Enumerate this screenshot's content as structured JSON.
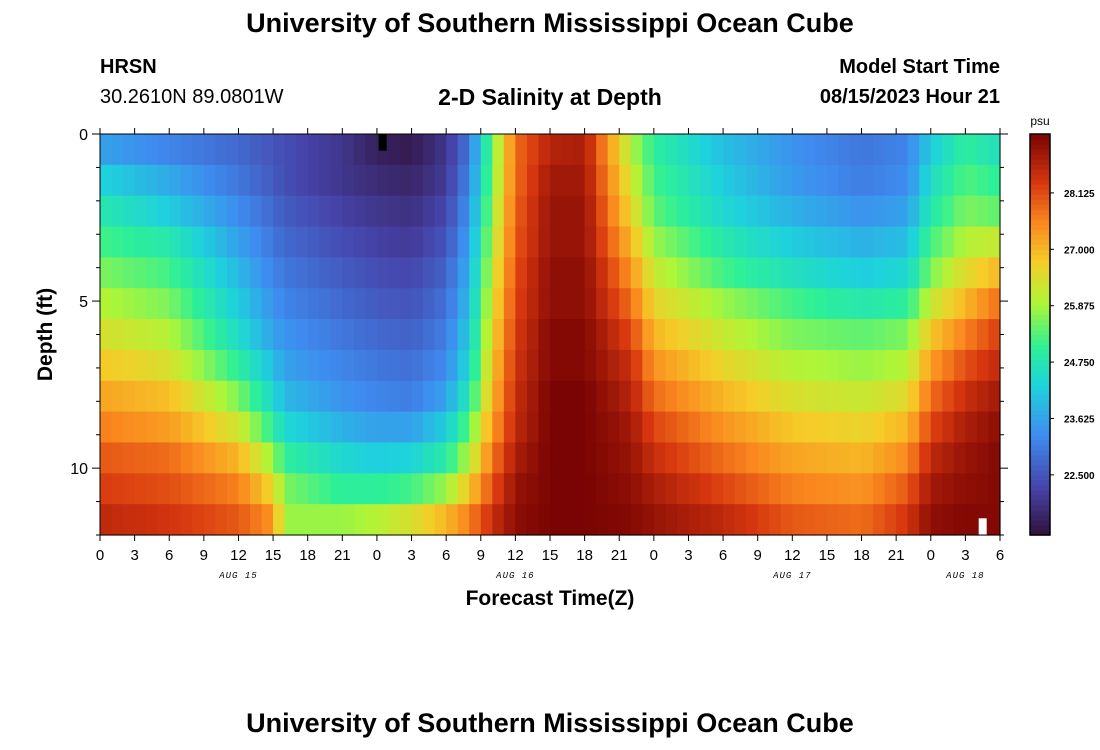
{
  "page": {
    "title_top": "University of Southern Mississippi Ocean Cube",
    "title_bottom": "University of Southern Mississippi Ocean Cube",
    "station": "HRSN",
    "coordinates": "30.2610N  89.0801W",
    "subtitle": "2-D Salinity at Depth",
    "model_start_label": "Model Start Time",
    "model_start_value": "08/15/2023 Hour 21"
  },
  "chart_data": {
    "type": "heatmap",
    "title": "2-D Salinity at Depth",
    "xlabel": "Forecast Time(Z)",
    "ylabel": "Depth (ft)",
    "x_unit": "forecast hours from 00Z Aug 15",
    "xlim": [
      0,
      78
    ],
    "ylim": [
      12,
      0
    ],
    "x_ticks": [
      0,
      3,
      6,
      9,
      12,
      15,
      18,
      21,
      24,
      27,
      30,
      33,
      36,
      39,
      42,
      45,
      48,
      51,
      54,
      57,
      60,
      63,
      66,
      69,
      72,
      75,
      78
    ],
    "x_tick_labels": [
      "0",
      "3",
      "6",
      "9",
      "12",
      "15",
      "18",
      "21",
      "0",
      "3",
      "6",
      "9",
      "12",
      "15",
      "18",
      "21",
      "0",
      "3",
      "6",
      "9",
      "12",
      "15",
      "18",
      "21",
      "0",
      "3",
      "6"
    ],
    "date_labels": [
      {
        "label": "AUG 15",
        "x": 12
      },
      {
        "label": "AUG 16",
        "x": 36
      },
      {
        "label": "AUG 17",
        "x": 60
      },
      {
        "label": "AUG 18",
        "x": 75
      }
    ],
    "y_ticks": [
      0,
      5,
      10
    ],
    "y_tick_labels": [
      "0",
      "5",
      "10"
    ],
    "y_minor_ticks": [
      1,
      2,
      3,
      4,
      6,
      7,
      8,
      9,
      11,
      12
    ],
    "colorbar": {
      "label": "psu",
      "min": 21.3,
      "max": 29.3,
      "ticks": [
        22.5,
        23.625,
        24.75,
        25.875,
        27.0,
        28.125
      ],
      "tick_labels": [
        "22.500",
        "23.625",
        "24.750",
        "25.875",
        "27.000",
        "28.125"
      ]
    },
    "depth_levels_ft": [
      0,
      1,
      2,
      3,
      4,
      5,
      6,
      7,
      8,
      9,
      10,
      11,
      12
    ],
    "time_hours": [
      0,
      6,
      12,
      15,
      16,
      21,
      24,
      27,
      30,
      32,
      34,
      36,
      39,
      42,
      46,
      48,
      54,
      60,
      66,
      70,
      72,
      75,
      78
    ],
    "salinity_psu_by_depth": [
      [
        23.6,
        23.2,
        22.8,
        22.5,
        22.4,
        22.0,
        21.6,
        21.5,
        22.0,
        23.0,
        25.5,
        27.8,
        28.7,
        28.8,
        26.0,
        25.0,
        24.0,
        23.4,
        23.0,
        23.2,
        24.2,
        25.0,
        24.6
      ],
      [
        24.3,
        23.7,
        23.0,
        22.6,
        22.4,
        22.0,
        21.8,
        21.7,
        22.1,
        23.2,
        25.6,
        27.8,
        28.9,
        28.9,
        26.3,
        25.2,
        24.2,
        23.5,
        23.1,
        23.3,
        24.5,
        25.3,
        25.0
      ],
      [
        24.8,
        24.2,
        23.3,
        22.8,
        22.6,
        22.2,
        22.0,
        21.9,
        22.3,
        23.4,
        25.8,
        27.9,
        29.0,
        29.0,
        26.6,
        25.4,
        24.4,
        23.8,
        23.4,
        23.6,
        24.8,
        25.6,
        25.4
      ],
      [
        25.2,
        24.8,
        23.6,
        23.0,
        22.8,
        22.4,
        22.2,
        22.1,
        22.5,
        23.6,
        26.0,
        28.0,
        29.0,
        29.0,
        27.0,
        25.8,
        24.8,
        24.2,
        23.8,
        24.0,
        25.2,
        26.0,
        26.2
      ],
      [
        25.6,
        25.2,
        23.9,
        23.2,
        23.0,
        22.6,
        22.4,
        22.3,
        22.7,
        23.8,
        26.2,
        28.1,
        29.1,
        29.1,
        27.4,
        26.2,
        25.2,
        24.6,
        24.2,
        24.4,
        25.6,
        26.5,
        27.0
      ],
      [
        26.0,
        25.6,
        24.2,
        23.4,
        23.2,
        22.8,
        22.6,
        22.5,
        22.9,
        24.0,
        26.4,
        28.2,
        29.1,
        29.1,
        27.8,
        26.6,
        25.8,
        25.2,
        24.8,
        25.0,
        26.2,
        27.0,
        27.8
      ],
      [
        26.4,
        26.0,
        24.5,
        23.6,
        23.4,
        23.0,
        22.8,
        22.7,
        23.1,
        24.2,
        26.6,
        28.3,
        29.2,
        29.2,
        28.2,
        27.0,
        26.2,
        25.6,
        25.4,
        25.6,
        26.8,
        27.6,
        28.3
      ],
      [
        26.8,
        26.4,
        25.0,
        24.0,
        23.6,
        23.2,
        23.0,
        22.9,
        23.3,
        24.4,
        26.8,
        28.4,
        29.2,
        29.2,
        28.5,
        27.4,
        26.6,
        26.0,
        25.8,
        26.0,
        27.3,
        28.1,
        28.6
      ],
      [
        27.2,
        26.9,
        25.6,
        24.4,
        23.9,
        23.4,
        23.2,
        23.1,
        23.6,
        24.8,
        27.0,
        28.5,
        29.3,
        29.3,
        28.7,
        27.8,
        27.0,
        26.4,
        26.2,
        26.5,
        27.8,
        28.5,
        28.9
      ],
      [
        27.6,
        27.3,
        26.3,
        25.0,
        24.4,
        23.8,
        23.6,
        23.6,
        24.2,
        25.4,
        27.3,
        28.6,
        29.3,
        29.3,
        28.9,
        28.2,
        27.4,
        26.8,
        26.6,
        27.0,
        28.2,
        28.8,
        29.1
      ],
      [
        28.0,
        27.8,
        27.0,
        25.8,
        25.0,
        24.4,
        24.2,
        24.3,
        24.9,
        26.0,
        27.7,
        28.8,
        29.3,
        29.3,
        29.0,
        28.5,
        27.8,
        27.2,
        27.0,
        27.5,
        28.6,
        29.0,
        29.2
      ],
      [
        28.3,
        28.1,
        27.6,
        26.6,
        25.6,
        25.0,
        25.0,
        25.2,
        25.8,
        26.8,
        28.1,
        29.0,
        29.3,
        29.3,
        29.1,
        28.8,
        28.2,
        27.6,
        27.4,
        28.0,
        28.9,
        29.1,
        29.2
      ],
      [
        28.6,
        28.4,
        28.0,
        27.4,
        25.8,
        25.8,
        26.0,
        26.4,
        27.0,
        27.6,
        28.5,
        29.1,
        29.3,
        29.3,
        29.2,
        29.0,
        28.6,
        28.0,
        27.8,
        28.4,
        29.1,
        29.2,
        29.2
      ]
    ],
    "markers": [
      {
        "x": 24.5,
        "y_from": 0,
        "y_to": 0.5,
        "color": "#000000"
      },
      {
        "x": 76.5,
        "y_from": 11.5,
        "y_to": 12,
        "color": "#ffffff"
      }
    ]
  }
}
